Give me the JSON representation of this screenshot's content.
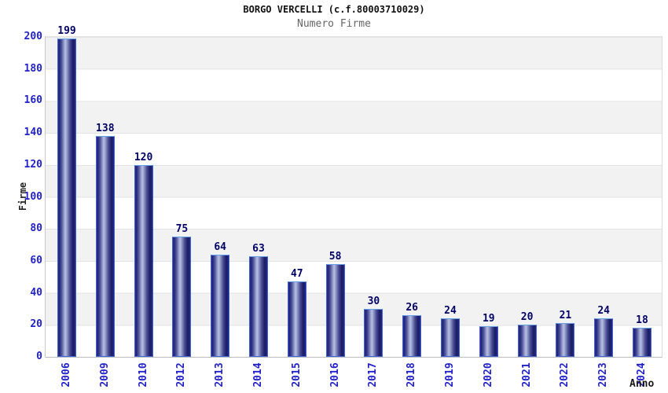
{
  "chart_data": {
    "type": "bar",
    "title": "BORGO VERCELLI (c.f.80003710029)",
    "subtitle": "Numero Firme",
    "xlabel": "Anno",
    "ylabel": "Firme",
    "categories": [
      "2006",
      "2009",
      "2010",
      "2012",
      "2013",
      "2014",
      "2015",
      "2016",
      "2017",
      "2018",
      "2019",
      "2020",
      "2021",
      "2022",
      "2023",
      "2024"
    ],
    "values": [
      199,
      138,
      120,
      75,
      64,
      63,
      47,
      58,
      30,
      26,
      24,
      19,
      20,
      21,
      24,
      18
    ],
    "ylim": [
      0,
      200
    ],
    "ytick_step": 20,
    "grid": "horizontal-bands-alternating",
    "legend": "none",
    "colors": {
      "tick_label": "#2222cc",
      "value_label": "#000066",
      "axis_title": "#1a1a1a",
      "title": "#111111",
      "subtitle": "#666666",
      "band_gray": "#f2f2f2",
      "band_white": "#ffffff",
      "grid_line": "#e3e3e3",
      "bar_border": "#3d63d6",
      "bar_dark": "#1b1b66",
      "bar_light": "#b9bfe2"
    }
  }
}
